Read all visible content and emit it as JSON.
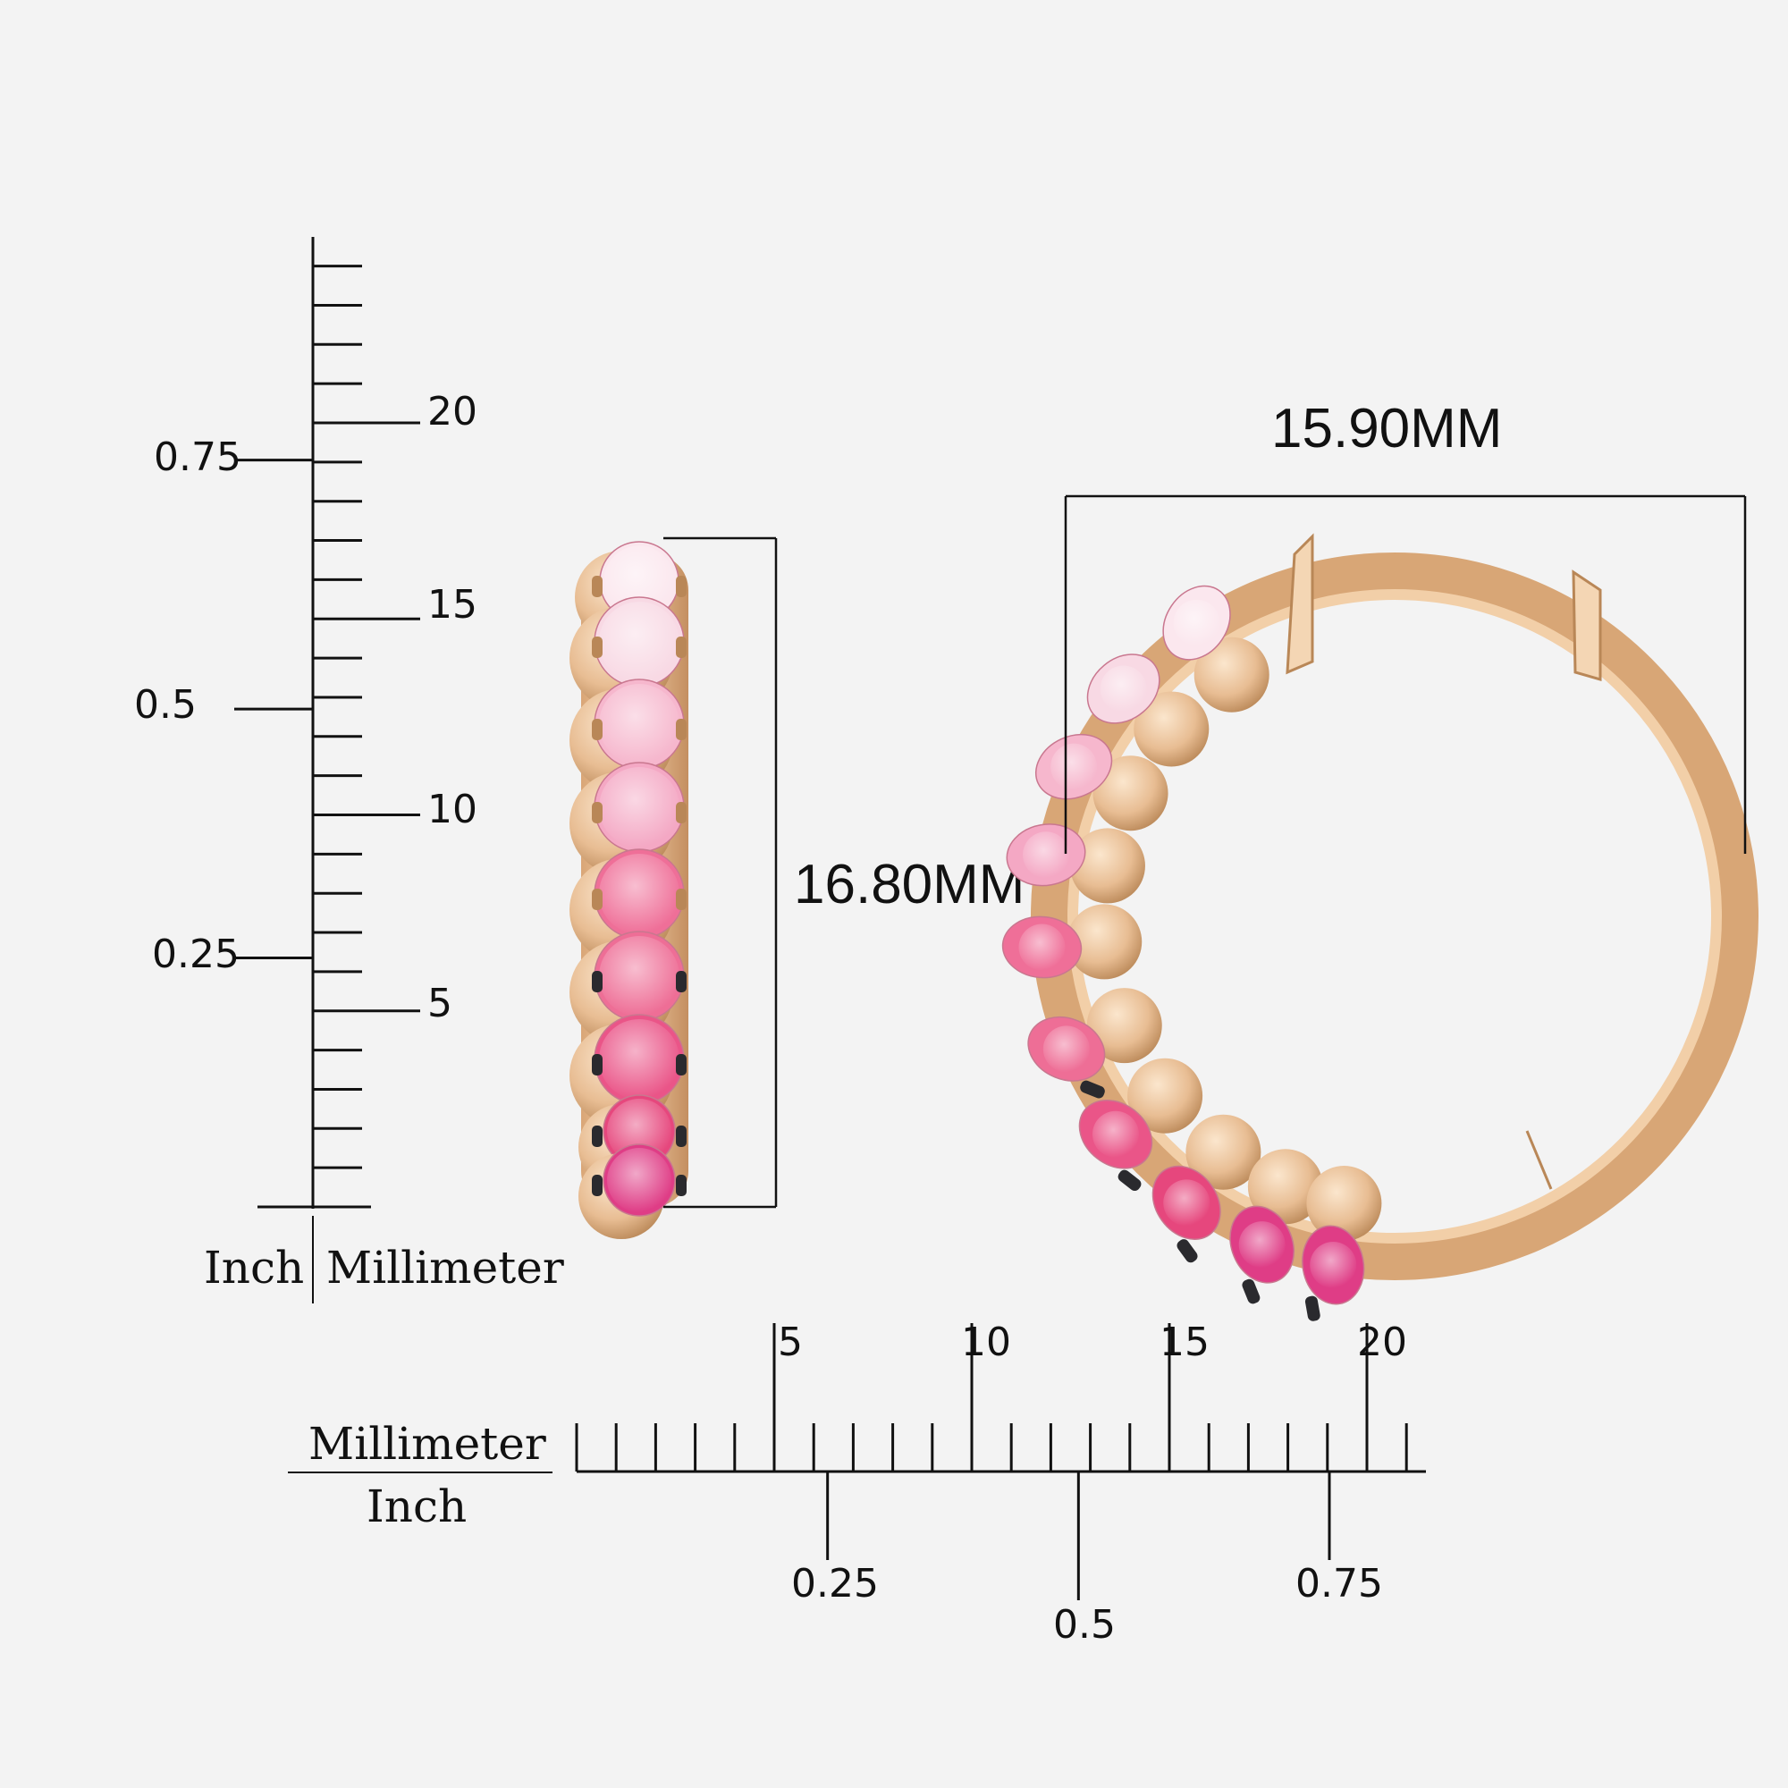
{
  "vertical_ruler": {
    "mm_labels": [
      "20",
      "15",
      "10",
      "5"
    ],
    "inch_labels": [
      "0.75",
      "0.5",
      "0.25"
    ],
    "unit_left": "Inch",
    "unit_right": "Millimeter"
  },
  "horizontal_ruler": {
    "mm_labels": [
      "5",
      "10",
      "15",
      "20"
    ],
    "inch_labels": [
      "0.25",
      "0.5",
      "0.75"
    ],
    "unit_top": "Millimeter",
    "unit_bottom": "Inch"
  },
  "dimensions": {
    "height_label": "16.80MM",
    "width_label": "15.90MM"
  },
  "colors": {
    "gold_light": "#f7dcc0",
    "gold": "#e8bd93",
    "gold_dark": "#b98757",
    "prong_black": "#2a2a2e",
    "gem_gradient": [
      "#fbe7ee",
      "#f8d9e4",
      "#f6b7cd",
      "#f4a8c4",
      "#ef6f98",
      "#ee6e96",
      "#ea5588",
      "#e6477d",
      "#df3d86"
    ]
  }
}
